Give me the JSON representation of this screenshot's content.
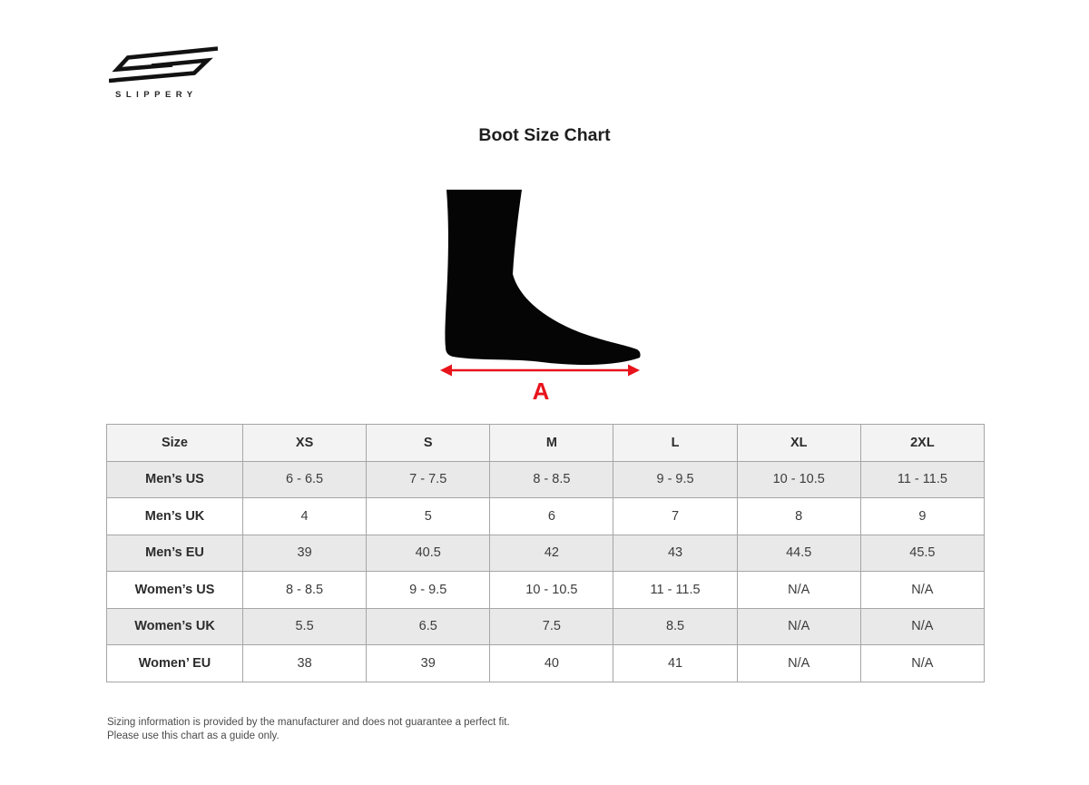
{
  "brand": {
    "name": "SLIPPERY"
  },
  "page": {
    "title": "Boot Size Chart"
  },
  "figure": {
    "illustration": "boot-silhouette",
    "dimension_label": "A",
    "arrow_color": "#e8131b",
    "silhouette_color": "#050505"
  },
  "table": {
    "columns": [
      "Size",
      "XS",
      "S",
      "M",
      "L",
      "XL",
      "2XL"
    ],
    "rows": [
      {
        "label": "Men’s US",
        "values": [
          "6 - 6.5",
          "7 - 7.5",
          "8 - 8.5",
          "9 - 9.5",
          "10 - 10.5",
          "11 - 11.5"
        ]
      },
      {
        "label": "Men’s UK",
        "values": [
          "4",
          "5",
          "6",
          "7",
          "8",
          "9"
        ]
      },
      {
        "label": "Men’s EU",
        "values": [
          "39",
          "40.5",
          "42",
          "43",
          "44.5",
          "45.5"
        ]
      },
      {
        "label": "Women’s US",
        "values": [
          "8 - 8.5",
          "9 - 9.5",
          "10 - 10.5",
          "11 - 11.5",
          "N/A",
          "N/A"
        ]
      },
      {
        "label": "Women’s UK",
        "values": [
          "5.5",
          "6.5",
          "7.5",
          "8.5",
          "N/A",
          "N/A"
        ]
      },
      {
        "label": "Women’ EU",
        "values": [
          "38",
          "39",
          "40",
          "41",
          "N/A",
          "N/A"
        ]
      }
    ],
    "header_bg": "#f3f3f3",
    "stripe_bg": "#e9e9e9",
    "border_color": "#a6a6a6"
  },
  "footer": {
    "line1": "Sizing information is provided by the manufacturer and does not guarantee a perfect fit.",
    "line2": "Please use this chart as a guide only."
  }
}
